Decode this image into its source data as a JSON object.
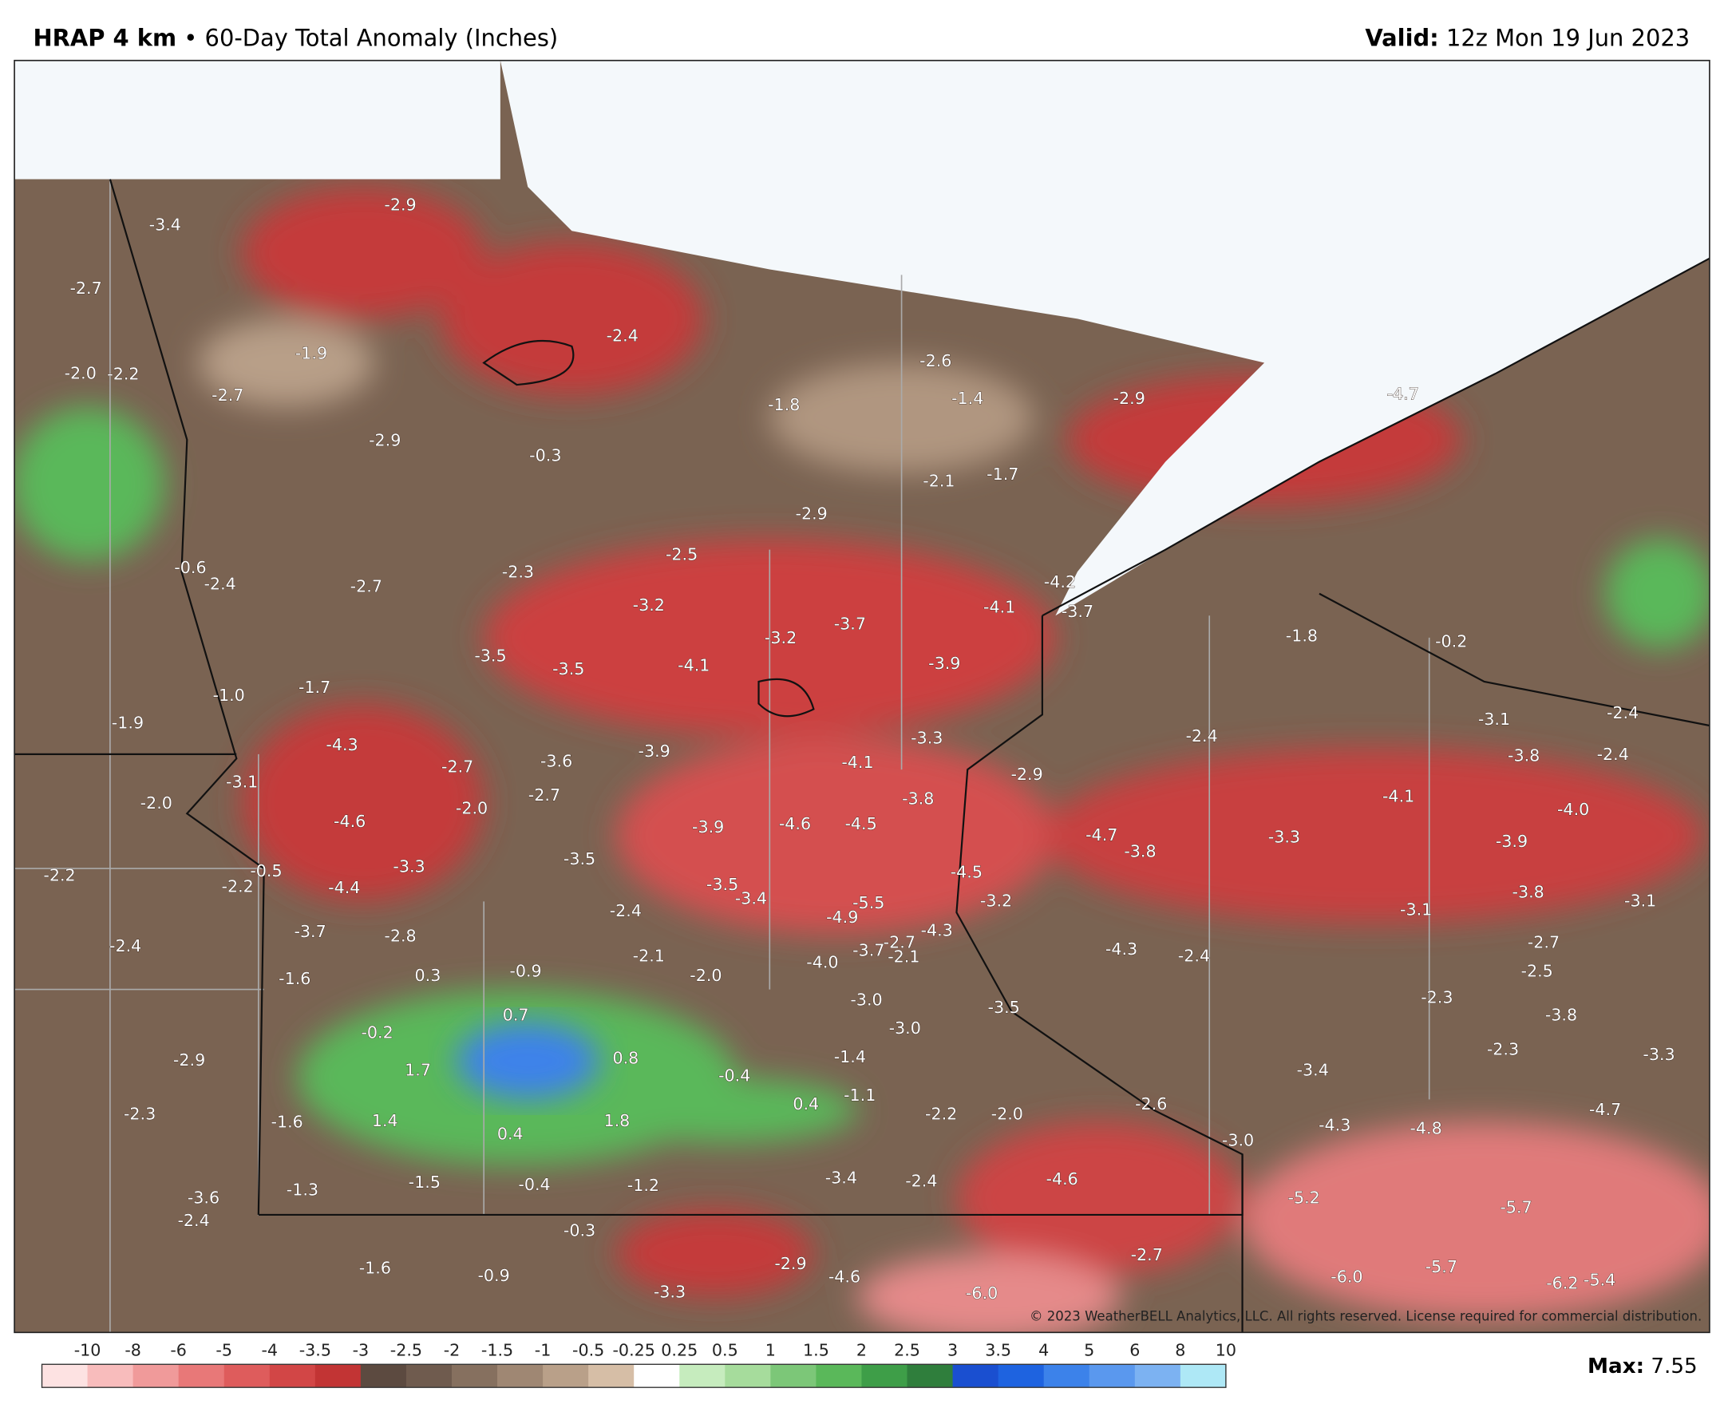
{
  "header": {
    "product": "HRAP 4 km",
    "separator": "•",
    "field": "60-Day Total Anomaly (Inches)",
    "valid_label": "Valid:",
    "valid_time": "12z Mon 19 Jun 2023"
  },
  "map": {
    "labels": [
      "-3.4",
      "-2.9",
      "-2.7",
      "-2.0",
      "-2.2",
      "-1.9",
      "-2.7",
      "-2.4",
      "-2.9",
      "-0.3",
      "-1.8",
      "-2.6",
      "-1.4",
      "-2.9",
      "-4.7",
      "-2.1",
      "-1.7",
      "-2.9",
      "-0.6",
      "-2.4",
      "-2.7",
      "-2.3",
      "-2.5",
      "-3.2",
      "-4.2",
      "-4.1",
      "-3.7",
      "-3.2",
      "-3.7",
      "-1.8",
      "-0.2",
      "-3.5",
      "-3.5",
      "-4.1",
      "-3.9",
      "-1.0",
      "-1.7",
      "-1.9",
      "-4.3",
      "-3.3",
      "-2.4",
      "-3.1",
      "-2.4",
      "-3.8",
      "-2.4",
      "-2.7",
      "-3.6",
      "-3.9",
      "-4.1",
      "-3.1",
      "-2.0",
      "-4.6",
      "-2.0",
      "-2.7",
      "-3.9",
      "-4.6",
      "-4.5",
      "-3.8",
      "-2.9",
      "-4.1",
      "-4.0",
      "-4.7",
      "-3.8",
      "-3.3",
      "-3.9",
      "-0.5",
      "-2.2",
      "-2.2",
      "-3.3",
      "-4.4",
      "-3.5",
      "-4.5",
      "-2.4",
      "-3.5",
      "-3.4",
      "-5.5",
      "-4.9",
      "-4.3",
      "-3.2",
      "-3.8",
      "-3.1",
      "-3.1",
      "-3.7",
      "-2.8",
      "-2.4",
      "-2.1",
      "-2.0",
      "-4.0",
      "-3.7",
      "-2.7",
      "-2.1",
      "-4.3",
      "-2.4",
      "-2.7",
      "-2.5",
      "-1.6",
      "0.3",
      "-0.9",
      "-3.0",
      "-2.3",
      "-3.5",
      "0.7",
      "-0.2",
      "-3.0",
      "-3.8",
      "-2.9",
      "0.8",
      "-1.4",
      "-2.3",
      "-3.3",
      "1.7",
      "-0.4",
      "-3.4",
      "0.4",
      "-1.1",
      "-2.3",
      "-1.6",
      "1.4",
      "1.8",
      "0.4",
      "-2.2",
      "-2.0",
      "-2.6",
      "-4.3",
      "-4.8",
      "-4.7",
      "-3.0",
      "-1.5",
      "-0.4",
      "-1.2",
      "-3.4",
      "-2.4",
      "-4.6",
      "-1.3",
      "-3.6",
      "-2.4",
      "-5.2",
      "-5.7",
      "-0.3",
      "-2.7",
      "-2.9",
      "-4.6",
      "-1.6",
      "-0.9",
      "-6.0",
      "-5.7",
      "-6.2",
      "-5.4",
      "-3.3",
      "-6.0"
    ],
    "copyright": "© 2023 WeatherBELL Analytics, LLC. All rights reserved. License required for commercial distribution."
  },
  "colorbar": {
    "ticks": [
      "-10",
      "-8",
      "-6",
      "-5",
      "-4",
      "-3.5",
      "-3",
      "-2.5",
      "-2",
      "-1.5",
      "-1",
      "-0.5",
      "-0.25",
      "0.25",
      "0.5",
      "1",
      "1.5",
      "2",
      "2.5",
      "3",
      "3.5",
      "4",
      "5",
      "6",
      "8",
      "10"
    ],
    "colors": [
      "#fde2e2",
      "#f8bcbc",
      "#f09a9a",
      "#e87878",
      "#de5c5c",
      "#d24646",
      "#c23434",
      "#5c4a40",
      "#6f5b4e",
      "#86705f",
      "#9f8773",
      "#b9a089",
      "#d6bea6",
      "#ffffff",
      "#c6ecbe",
      "#a6dc9c",
      "#7cc778",
      "#5ab85a",
      "#3e9e48",
      "#2f7e3c",
      "#1a4fd0",
      "#1e63e0",
      "#3c82ea",
      "#5a98ee",
      "#7cb2f2",
      "#aee8f6"
    ]
  },
  "max": {
    "label": "Max:",
    "value": "7.55"
  }
}
